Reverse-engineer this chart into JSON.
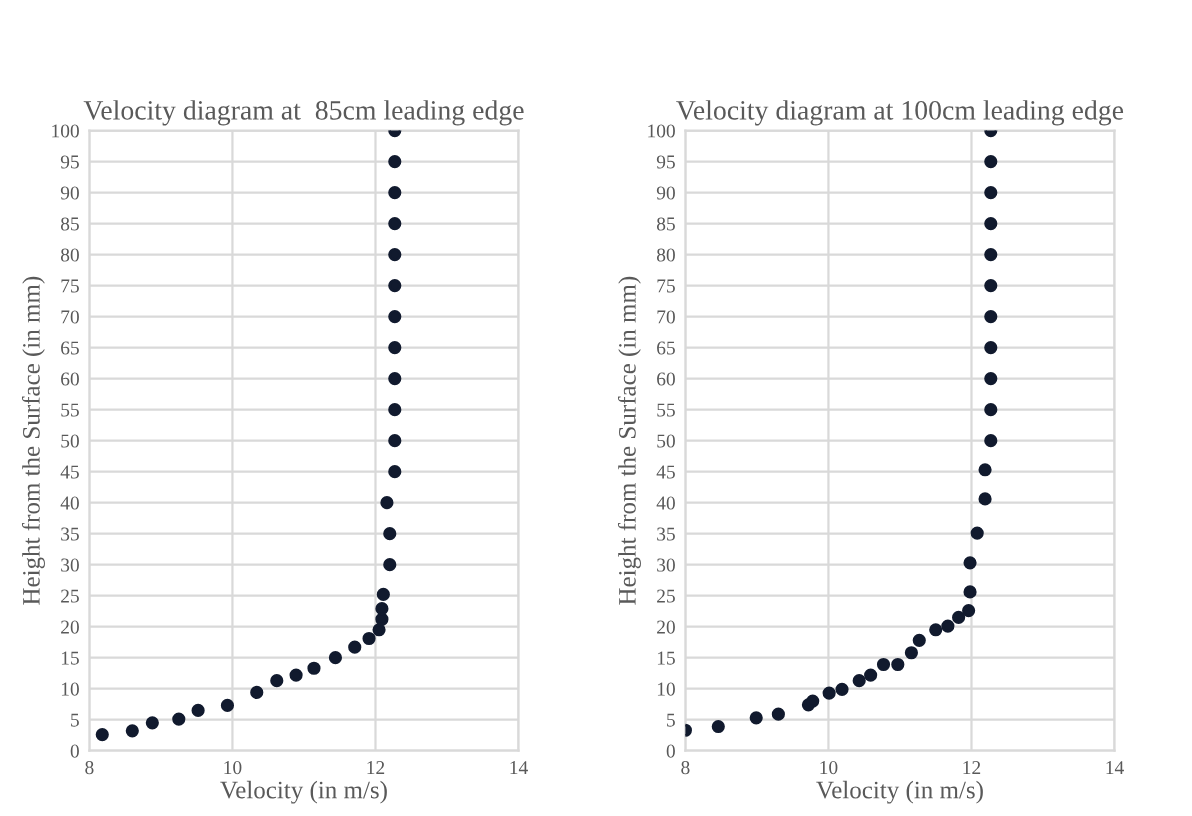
{
  "chart_data": [
    {
      "type": "scatter",
      "title": "Velocity diagram at  85cm leading edge",
      "xlabel": "Velocity (in m/s)",
      "ylabel": "Height from the Surface (in mm)",
      "x": [
        8.18,
        8.6,
        8.88,
        9.25,
        9.52,
        9.93,
        10.34,
        10.62,
        10.89,
        11.14,
        11.44,
        11.71,
        11.91,
        12.05,
        12.09,
        12.09,
        12.11,
        12.2,
        12.2,
        12.16,
        12.27,
        12.27,
        12.27,
        12.27,
        12.27,
        12.27,
        12.27,
        12.27,
        12.27,
        12.27,
        12.27,
        12.27
      ],
      "series": [
        {
          "color": "#111a2e",
          "values": [
            2.6,
            3.2,
            4.5,
            5.1,
            6.5,
            7.3,
            9.4,
            11.3,
            12.2,
            13.3,
            15,
            16.7,
            18.1,
            19.5,
            21.2,
            22.9,
            25.2,
            30,
            35,
            40,
            45,
            50,
            55,
            60,
            65,
            70,
            75,
            80,
            85,
            90,
            95,
            100
          ]
        }
      ],
      "xlim": [
        8,
        14
      ],
      "xticks": [
        8,
        10,
        12,
        14
      ],
      "ylim": [
        0,
        100
      ],
      "yticks": [
        0,
        5,
        10,
        15,
        20,
        25,
        30,
        35,
        40,
        45,
        50,
        55,
        60,
        65,
        70,
        75,
        80,
        85,
        90,
        95,
        100
      ],
      "grid": true,
      "marker": "circle"
    },
    {
      "type": "scatter",
      "title": "Velocity diagram at 100cm leading edge",
      "xlabel": "Velocity (in m/s)",
      "ylabel": "Height from the Surface (in mm)",
      "x": [
        8.0,
        8.46,
        8.99,
        9.3,
        9.72,
        9.78,
        10.01,
        10.19,
        10.43,
        10.59,
        10.77,
        10.97,
        11.16,
        11.27,
        11.5,
        11.67,
        11.82,
        11.96,
        11.98,
        11.98,
        12.08,
        12.19,
        12.19,
        12.27,
        12.27,
        12.27,
        12.27,
        12.27,
        12.27,
        12.27,
        12.27,
        12.27,
        12.27,
        12.27
      ],
      "series": [
        {
          "color": "#111a2e",
          "values": [
            3.3,
            3.9,
            5.3,
            5.9,
            7.4,
            8.0,
            9.3,
            9.9,
            11.3,
            12.2,
            13.9,
            13.9,
            15.8,
            17.8,
            19.5,
            20.1,
            21.5,
            22.6,
            25.6,
            30.3,
            35.1,
            40.6,
            45.3,
            50,
            55,
            60,
            65,
            70,
            75,
            80,
            85,
            90,
            95,
            100
          ]
        }
      ],
      "xlim": [
        8,
        14
      ],
      "xticks": [
        8,
        10,
        12,
        14
      ],
      "ylim": [
        0,
        100
      ],
      "yticks": [
        0,
        5,
        10,
        15,
        20,
        25,
        30,
        35,
        40,
        45,
        50,
        55,
        60,
        65,
        70,
        75,
        80,
        85,
        90,
        95,
        100
      ],
      "grid": true,
      "marker": "circle"
    }
  ]
}
